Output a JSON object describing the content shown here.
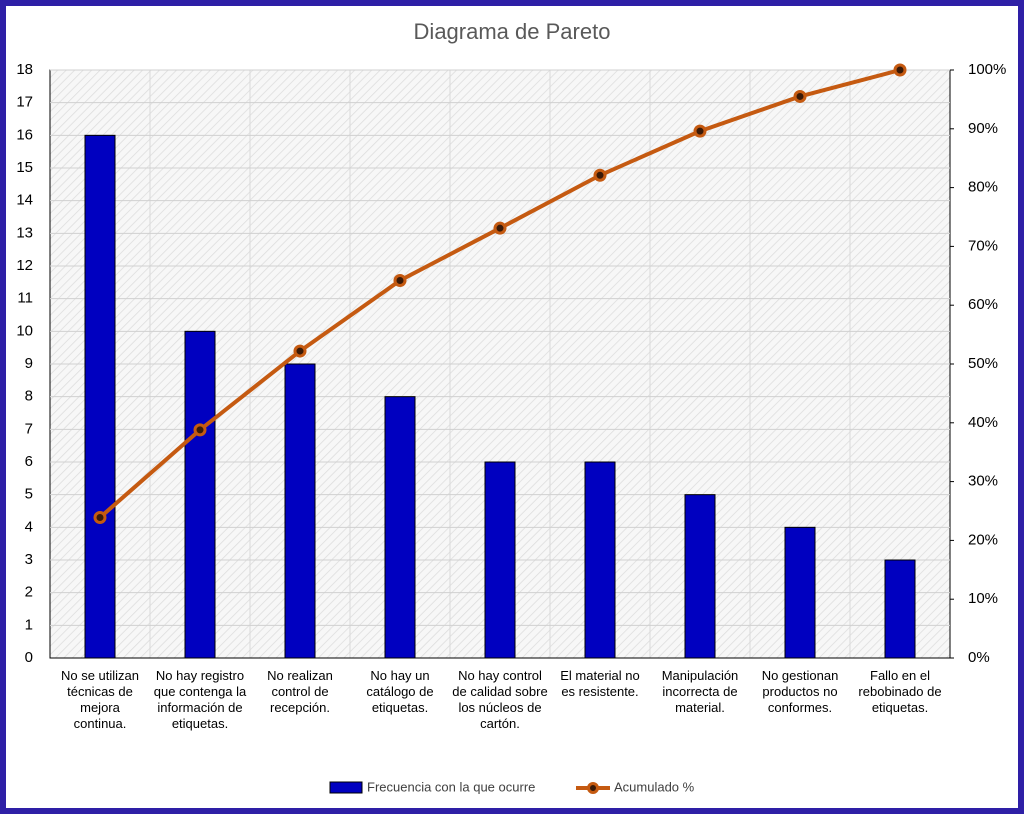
{
  "chart_data": {
    "type": "pareto",
    "title": "Diagrama de Pareto",
    "categories": [
      "No se utilizan técnicas de mejora continua.",
      "No hay registro que contenga la información de etiquetas.",
      "No realizan control de recepción.",
      "No hay un catálogo de etiquetas.",
      "No hay control de calidad sobre los núcleos de cartón.",
      "El material no es resistente.",
      "Manipulación incorrecta de material.",
      "No gestionan productos no conformes.",
      "Fallo en el rebobinado de etiquetas."
    ],
    "series": [
      {
        "name": "Frecuencia con la que ocurre",
        "type": "bar",
        "color": "#0000c0",
        "values": [
          16,
          10,
          9,
          8,
          6,
          6,
          5,
          4,
          3
        ]
      },
      {
        "name": "Acumulado %",
        "type": "line",
        "axis": "y2",
        "color": "#c55a11",
        "values": [
          23.9,
          38.8,
          52.2,
          64.2,
          73.1,
          82.1,
          89.6,
          95.5,
          100
        ]
      }
    ],
    "ylim": [
      0,
      18
    ],
    "yticks": [
      0,
      1,
      2,
      3,
      4,
      5,
      6,
      7,
      8,
      9,
      10,
      11,
      12,
      13,
      14,
      15,
      16,
      17,
      18
    ],
    "y2lim": [
      0,
      100
    ],
    "y2ticks": [
      {
        "value": 0,
        "label": "0%"
      },
      {
        "value": 10,
        "label": "10%"
      },
      {
        "value": 20,
        "label": "20%"
      },
      {
        "value": 30,
        "label": "30%"
      },
      {
        "value": 40,
        "label": "40%"
      },
      {
        "value": 50,
        "label": "50%"
      },
      {
        "value": 60,
        "label": "60%"
      },
      {
        "value": 70,
        "label": "70%"
      },
      {
        "value": 80,
        "label": "80%"
      },
      {
        "value": 90,
        "label": "90%"
      },
      {
        "value": 100,
        "label": "100%"
      }
    ],
    "grid": true,
    "legend": "bottom"
  }
}
